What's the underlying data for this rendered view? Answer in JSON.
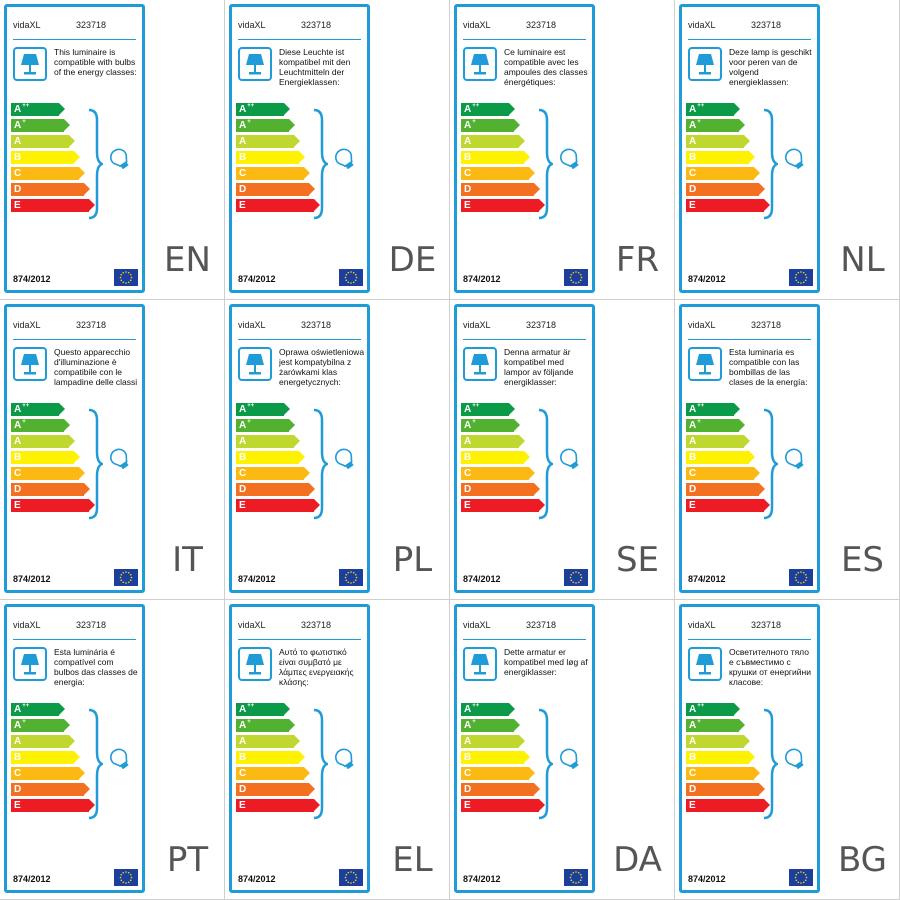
{
  "brand": "vidaXL",
  "product_code": "323718",
  "regulation": "874/2012",
  "icons": {
    "lamp": "lamp-icon",
    "bulb": "bulb-icon",
    "flag": "eu-flag-icon"
  },
  "energy_classes": [
    {
      "letter": "A",
      "sup": "++",
      "color": "#0b9b48"
    },
    {
      "letter": "A",
      "sup": "+",
      "color": "#53b132"
    },
    {
      "letter": "A",
      "sup": "",
      "color": "#bfd72f"
    },
    {
      "letter": "B",
      "sup": "",
      "color": "#fff200"
    },
    {
      "letter": "C",
      "sup": "",
      "color": "#fdb913"
    },
    {
      "letter": "D",
      "sup": "",
      "color": "#f37021"
    },
    {
      "letter": "E",
      "sup": "",
      "color": "#ed1c24"
    }
  ],
  "labels": [
    {
      "lang": "EN",
      "text": "This luminaire is compatible with bulbs of the energy classes:"
    },
    {
      "lang": "DE",
      "text": "Diese Leuchte ist kompatibel mit den Leuchtmitteln der Energieklassen:"
    },
    {
      "lang": "FR",
      "text": "Ce luminaire est compatible avec les ampoules des classes énergétiques:"
    },
    {
      "lang": "NL",
      "text": "Deze lamp is geschikt voor peren van de volgend energieklassen:"
    },
    {
      "lang": "IT",
      "text": "Questo apparecchio d'illuminazione è compatibile con le lampadine delle classi energetiche:"
    },
    {
      "lang": "PL",
      "text": "Oprawa oświetleniowa jest kompatybilna z żarówkami klas energetycznych:"
    },
    {
      "lang": "SE",
      "text": "Denna armatur är kompatibel med lampor av följande energiklasser:"
    },
    {
      "lang": "ES",
      "text": "Esta luminaria es compatible con las bombillas de las clases de la energía:"
    },
    {
      "lang": "PT",
      "text": "Esta luminária é compatível com bulbos das classes de energia:"
    },
    {
      "lang": "EL",
      "text": "Αυτό το φωτιστικό είναι συμβατό με λάμπες ενεργειακής κλάσης:"
    },
    {
      "lang": "DA",
      "text": "Dette armatur er kompatibel med løg af energiklasser:"
    },
    {
      "lang": "BG",
      "text": "Осветителното тяло е съвместимо с крушки от енергийни класове:"
    }
  ]
}
